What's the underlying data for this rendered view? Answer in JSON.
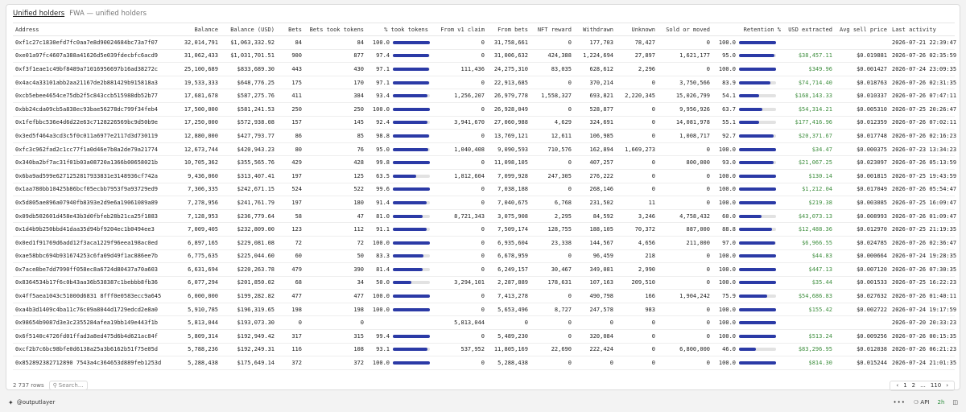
{
  "header": {
    "tab_label": "Unified holders",
    "subtitle": "FWA — unified holders"
  },
  "columns": [
    "Address",
    "Balance",
    "Balance (USD)",
    "Bets",
    "Bets took tokens",
    "% took tokens",
    "From v1 claim",
    "From bets",
    "NFT reward",
    "Withdrawn",
    "Unknown",
    "Sold or moved",
    "Retention %",
    "USD extracted",
    "Avg sell price",
    "Last activity"
  ],
  "rows": [
    {
      "address": "0xf1c27c1830efd7fc0aa7e8d90024684bc73a7f07",
      "balance": "32,014,791",
      "usd": "$1,063,332.92",
      "bets": "84",
      "took": "84",
      "pct": "100.0",
      "pct_fraction": 1.0,
      "v1": "0",
      "from_bets": "31,758,661",
      "nft": "0",
      "withdrawn": "177,703",
      "unknown": "78,427",
      "sold": "0",
      "ret": "100.0",
      "ret_fraction": 1.0,
      "usd_ext": "",
      "avg_price": "",
      "last": "2026-07-21 22:39:47"
    },
    {
      "address": "0xe01a97fc4607a388a41626d5e039fdecbfc6acd9",
      "balance": "31,062,433",
      "usd": "$1,031,701.51",
      "bets": "900",
      "took": "877",
      "pct": "97.4",
      "pct_fraction": 0.974,
      "v1": "0",
      "from_bets": "31,006,632",
      "nft": "424,388",
      "withdrawn": "1,224,694",
      "unknown": "27,897",
      "sold": "1,621,177",
      "ret": "95.0",
      "ret_fraction": 0.95,
      "usd_ext": "$38,457.11",
      "avg_price": "$0.019881",
      "last": "2026-07-26 02:35:59"
    },
    {
      "address": "0xf3f1eae1c49bf8489a71016956697b16ad38272c",
      "balance": "25,100,689",
      "usd": "$833,689.30",
      "bets": "443",
      "took": "430",
      "pct": "97.1",
      "pct_fraction": 0.971,
      "v1": "111,436",
      "from_bets": "24,275,310",
      "nft": "83,035",
      "withdrawn": "628,612",
      "unknown": "2,296",
      "sold": "0",
      "ret": "100.0",
      "ret_fraction": 1.0,
      "usd_ext": "$349.96",
      "avg_price": "$0.001427",
      "last": "2026-07-24 23:09:35"
    },
    {
      "address": "0x4ac4a33101abb2aa21167de2b881429b915818a3",
      "balance": "19,533,333",
      "usd": "$648,776.25",
      "bets": "175",
      "took": "170",
      "pct": "97.1",
      "pct_fraction": 0.971,
      "v1": "0",
      "from_bets": "22,913,685",
      "nft": "0",
      "withdrawn": "370,214",
      "unknown": "0",
      "sold": "3,750,566",
      "ret": "83.9",
      "ret_fraction": 0.839,
      "usd_ext": "$74,714.40",
      "avg_price": "$0.018763",
      "last": "2026-07-26 02:31:35"
    },
    {
      "address": "0xcb5ebee4654ce75db2f5c843ccb515988db52b77",
      "balance": "17,681,678",
      "usd": "$587,275.76",
      "bets": "411",
      "took": "384",
      "pct": "93.4",
      "pct_fraction": 0.934,
      "v1": "1,256,207",
      "from_bets": "26,979,778",
      "nft": "1,558,327",
      "withdrawn": "693,821",
      "unknown": "2,220,345",
      "sold": "15,026,799",
      "ret": "54.1",
      "ret_fraction": 0.541,
      "usd_ext": "$168,143.33",
      "avg_price": "$0.010337",
      "last": "2026-07-26 07:47:11"
    },
    {
      "address": "0xbb24cda09cb5a838ec93bae56278dc799f34feb4",
      "balance": "17,500,000",
      "usd": "$581,241.53",
      "bets": "250",
      "took": "250",
      "pct": "100.0",
      "pct_fraction": 1.0,
      "v1": "0",
      "from_bets": "26,928,049",
      "nft": "0",
      "withdrawn": "528,877",
      "unknown": "0",
      "sold": "9,956,926",
      "ret": "63.7",
      "ret_fraction": 0.637,
      "usd_ext": "$54,314.21",
      "avg_price": "$0.005310",
      "last": "2026-07-25 20:26:47"
    },
    {
      "address": "0x1fefbbc536e4d6d22e63c7128226569bc9d50b9e",
      "balance": "17,250,000",
      "usd": "$572,938.08",
      "bets": "157",
      "took": "145",
      "pct": "92.4",
      "pct_fraction": 0.924,
      "v1": "3,941,670",
      "from_bets": "27,060,988",
      "nft": "4,629",
      "withdrawn": "324,691",
      "unknown": "0",
      "sold": "14,081,978",
      "ret": "55.1",
      "ret_fraction": 0.551,
      "usd_ext": "$177,416.96",
      "avg_price": "$0.012359",
      "last": "2026-07-26 07:02:11"
    },
    {
      "address": "0x3ed5f464a3cd3c5f0c011a6977e2117d3d730119",
      "balance": "12,880,000",
      "usd": "$427,793.77",
      "bets": "86",
      "took": "85",
      "pct": "98.8",
      "pct_fraction": 0.988,
      "v1": "0",
      "from_bets": "13,769,121",
      "nft": "12,611",
      "withdrawn": "106,985",
      "unknown": "0",
      "sold": "1,008,717",
      "ret": "92.7",
      "ret_fraction": 0.927,
      "usd_ext": "$20,371.67",
      "avg_price": "$0.017748",
      "last": "2026-07-26 02:16:23"
    },
    {
      "address": "0xfc3c962fad2c1cc77f1a0d46e7b8a2de79a21774",
      "balance": "12,673,744",
      "usd": "$420,943.23",
      "bets": "80",
      "took": "76",
      "pct": "95.0",
      "pct_fraction": 0.95,
      "v1": "1,040,408",
      "from_bets": "9,090,593",
      "nft": "710,576",
      "withdrawn": "162,894",
      "unknown": "1,669,273",
      "sold": "0",
      "ret": "100.0",
      "ret_fraction": 1.0,
      "usd_ext": "$34.47",
      "avg_price": "$0.000375",
      "last": "2026-07-23 13:34:23"
    },
    {
      "address": "0x340ba2bf7ac31f01b03a08720a1366b00658021b",
      "balance": "10,705,362",
      "usd": "$355,565.76",
      "bets": "429",
      "took": "428",
      "pct": "99.8",
      "pct_fraction": 0.998,
      "v1": "0",
      "from_bets": "11,098,105",
      "nft": "0",
      "withdrawn": "407,257",
      "unknown": "0",
      "sold": "800,000",
      "ret": "93.0",
      "ret_fraction": 0.93,
      "usd_ext": "$21,067.25",
      "avg_price": "$0.023097",
      "last": "2026-07-26 05:13:59"
    },
    {
      "address": "0x6ba9ad599e6271252817933831e3148936cf742a",
      "balance": "9,436,060",
      "usd": "$313,407.41",
      "bets": "197",
      "took": "125",
      "pct": "63.5",
      "pct_fraction": 0.635,
      "v1": "1,812,604",
      "from_bets": "7,099,928",
      "nft": "247,305",
      "withdrawn": "276,222",
      "unknown": "0",
      "sold": "0",
      "ret": "100.0",
      "ret_fraction": 1.0,
      "usd_ext": "$130.14",
      "avg_price": "$0.001815",
      "last": "2026-07-25 19:43:59"
    },
    {
      "address": "0x1aa780bb10425b86bcf05ecbb7953f9a93729ed9",
      "balance": "7,306,335",
      "usd": "$242,671.15",
      "bets": "524",
      "took": "522",
      "pct": "99.6",
      "pct_fraction": 0.996,
      "v1": "0",
      "from_bets": "7,038,188",
      "nft": "0",
      "withdrawn": "268,146",
      "unknown": "0",
      "sold": "0",
      "ret": "100.0",
      "ret_fraction": 1.0,
      "usd_ext": "$1,212.04",
      "avg_price": "$0.017049",
      "last": "2026-07-26 05:54:47"
    },
    {
      "address": "0x5d805ae896a07940fb8393e2d9e6a19061089a89",
      "balance": "7,278,956",
      "usd": "$241,761.79",
      "bets": "197",
      "took": "180",
      "pct": "91.4",
      "pct_fraction": 0.914,
      "v1": "0",
      "from_bets": "7,040,675",
      "nft": "6,768",
      "withdrawn": "231,502",
      "unknown": "11",
      "sold": "0",
      "ret": "100.0",
      "ret_fraction": 1.0,
      "usd_ext": "$219.38",
      "avg_price": "$0.003085",
      "last": "2026-07-25 16:09:47"
    },
    {
      "address": "0x09db502601d458e43b3d0fbfeb28b21ca25f1883",
      "balance": "7,128,953",
      "usd": "$236,779.64",
      "bets": "58",
      "took": "47",
      "pct": "81.0",
      "pct_fraction": 0.81,
      "v1": "8,721,343",
      "from_bets": "3,075,908",
      "nft": "2,295",
      "withdrawn": "84,592",
      "unknown": "3,246",
      "sold": "4,758,432",
      "ret": "60.0",
      "ret_fraction": 0.6,
      "usd_ext": "$43,073.13",
      "avg_price": "$0.008993",
      "last": "2026-07-26 01:09:47"
    },
    {
      "address": "0x1d4b9b250bbd41daa35d94bf9204ec1b0494ee3",
      "balance": "7,009,405",
      "usd": "$232,809.00",
      "bets": "123",
      "took": "112",
      "pct": "91.1",
      "pct_fraction": 0.911,
      "v1": "0",
      "from_bets": "7,509,174",
      "nft": "128,755",
      "withdrawn": "188,105",
      "unknown": "70,372",
      "sold": "887,000",
      "ret": "88.8",
      "ret_fraction": 0.888,
      "usd_ext": "$12,488.36",
      "avg_price": "$0.012970",
      "last": "2026-07-25 21:19:35"
    },
    {
      "address": "0x0ed1f91769d6add12f3aca1229f96eea198ac0ed",
      "balance": "6,897,165",
      "usd": "$229,081.08",
      "bets": "72",
      "took": "72",
      "pct": "100.0",
      "pct_fraction": 1.0,
      "v1": "0",
      "from_bets": "6,935,604",
      "nft": "23,338",
      "withdrawn": "144,567",
      "unknown": "4,656",
      "sold": "211,000",
      "ret": "97.0",
      "ret_fraction": 0.97,
      "usd_ext": "$6,966.55",
      "avg_price": "$0.024785",
      "last": "2026-07-26 02:36:47"
    },
    {
      "address": "0xae58bbc694b931674253c6fa09d49f1ac886ee7b",
      "balance": "6,775,635",
      "usd": "$225,044.60",
      "bets": "60",
      "took": "50",
      "pct": "83.3",
      "pct_fraction": 0.833,
      "v1": "0",
      "from_bets": "6,678,959",
      "nft": "0",
      "withdrawn": "96,459",
      "unknown": "218",
      "sold": "0",
      "ret": "100.0",
      "ret_fraction": 1.0,
      "usd_ext": "$44.83",
      "avg_price": "$0.000664",
      "last": "2026-07-24 19:28:35"
    },
    {
      "address": "0x7ace8be7dd7990ff058ec8a6724d80437a70a603",
      "balance": "6,631,694",
      "usd": "$220,263.78",
      "bets": "479",
      "took": "390",
      "pct": "81.4",
      "pct_fraction": 0.814,
      "v1": "0",
      "from_bets": "6,249,157",
      "nft": "30,467",
      "withdrawn": "349,081",
      "unknown": "2,990",
      "sold": "0",
      "ret": "100.0",
      "ret_fraction": 1.0,
      "usd_ext": "$447.13",
      "avg_price": "$0.007120",
      "last": "2026-07-26 07:30:35"
    },
    {
      "address": "0x8364534b17f6c0b43aa36b538387c1bebbb8fb36",
      "balance": "6,077,294",
      "usd": "$201,850.02",
      "bets": "68",
      "took": "34",
      "pct": "50.0",
      "pct_fraction": 0.5,
      "v1": "3,294,101",
      "from_bets": "2,287,889",
      "nft": "178,631",
      "withdrawn": "107,163",
      "unknown": "209,510",
      "sold": "0",
      "ret": "100.0",
      "ret_fraction": 1.0,
      "usd_ext": "$35.44",
      "avg_price": "$0.001533",
      "last": "2026-07-25 16:22:23"
    },
    {
      "address": "0x4ff5aea1043c51000d6831 8fff0e0583ecc9a645",
      "balance": "6,000,000",
      "usd": "$199,282.82",
      "bets": "477",
      "took": "477",
      "pct": "100.0",
      "pct_fraction": 1.0,
      "v1": "0",
      "from_bets": "7,413,278",
      "nft": "0",
      "withdrawn": "490,798",
      "unknown": "166",
      "sold": "1,904,242",
      "ret": "75.9",
      "ret_fraction": 0.759,
      "usd_ext": "$54,686.83",
      "avg_price": "$0.027632",
      "last": "2026-07-26 01:40:11"
    },
    {
      "address": "0xa4b3d1409c4ba11c76c09a8044d1729edcd2e8a0",
      "balance": "5,910,785",
      "usd": "$196,319.65",
      "bets": "198",
      "took": "198",
      "pct": "100.0",
      "pct_fraction": 1.0,
      "v1": "0",
      "from_bets": "5,653,496",
      "nft": "8,727",
      "withdrawn": "247,578",
      "unknown": "983",
      "sold": "0",
      "ret": "100.0",
      "ret_fraction": 1.0,
      "usd_ext": "$155.42",
      "avg_price": "$0.002722",
      "last": "2026-07-24 19:17:59"
    },
    {
      "address": "0x98654b9087d3e3c2355284afea19bb149e443f1b",
      "balance": "5,813,044",
      "usd": "$193,073.30",
      "bets": "0",
      "took": "0",
      "pct": "",
      "pct_fraction": null,
      "v1": "5,813,044",
      "from_bets": "0",
      "nft": "0",
      "withdrawn": "0",
      "unknown": "0",
      "sold": "0",
      "ret": "100.0",
      "ret_fraction": 1.0,
      "usd_ext": "",
      "avg_price": "",
      "last": "2026-07-20 20:33:23"
    },
    {
      "address": "0x6f5140c4726fd01ffad3a8ed475d6b4d621ac84f",
      "balance": "5,809,314",
      "usd": "$192,949.42",
      "bets": "317",
      "took": "315",
      "pct": "99.4",
      "pct_fraction": 0.994,
      "v1": "0",
      "from_bets": "5,489,230",
      "nft": "0",
      "withdrawn": "320,084",
      "unknown": "0",
      "sold": "0",
      "ret": "100.0",
      "ret_fraction": 1.0,
      "usd_ext": "$513.24",
      "avg_price": "$0.009256",
      "last": "2026-07-26 00:15:35"
    },
    {
      "address": "0xcf2b7c6bc98bfe0d6138a25a3b6162b51f75e05d",
      "balance": "5,788,236",
      "usd": "$192,249.31",
      "bets": "116",
      "took": "108",
      "pct": "93.1",
      "pct_fraction": 0.931,
      "v1": "537,952",
      "from_bets": "11,805,169",
      "nft": "22,690",
      "withdrawn": "222,424",
      "unknown": "0",
      "sold": "6,800,000",
      "ret": "46.0",
      "ret_fraction": 0.46,
      "usd_ext": "$83,296.95",
      "avg_price": "$0.012038",
      "last": "2026-07-26 06:21:23"
    },
    {
      "address": "0x852892382712890 7543a4c364653d889feb1253d",
      "balance": "5,288,438",
      "usd": "$175,649.14",
      "bets": "372",
      "took": "372",
      "pct": "100.0",
      "pct_fraction": 1.0,
      "v1": "0",
      "from_bets": "5,288,438",
      "nft": "0",
      "withdrawn": "0",
      "unknown": "0",
      "sold": "0",
      "ret": "100.0",
      "ret_fraction": 1.0,
      "usd_ext": "$814.30",
      "avg_price": "$0.015244",
      "last": "2026-07-24 21:01:35"
    }
  ],
  "footer": {
    "row_count": "2 737 rows",
    "search_placeholder": "Search...",
    "search_icon": "magnifier-icon",
    "page_prev": "‹",
    "page_1": "1",
    "page_2": "2",
    "page_ellipsis": "...",
    "page_last": "110",
    "page_next": "›"
  },
  "bottom_bar": {
    "user": "@outputlayer",
    "logo_icon": "outputlayer-logo-icon",
    "dots": "•••",
    "api_label": "API",
    "ago": "2h",
    "api_icon": "plug-icon",
    "chat_icon": "chat-icon"
  },
  "colors": {
    "bar_fill": "#2b3aa6",
    "bar_track": "#e2e2e2",
    "positive_usd": "#3f8f3f",
    "ago_badge": "#2f8f3f"
  }
}
